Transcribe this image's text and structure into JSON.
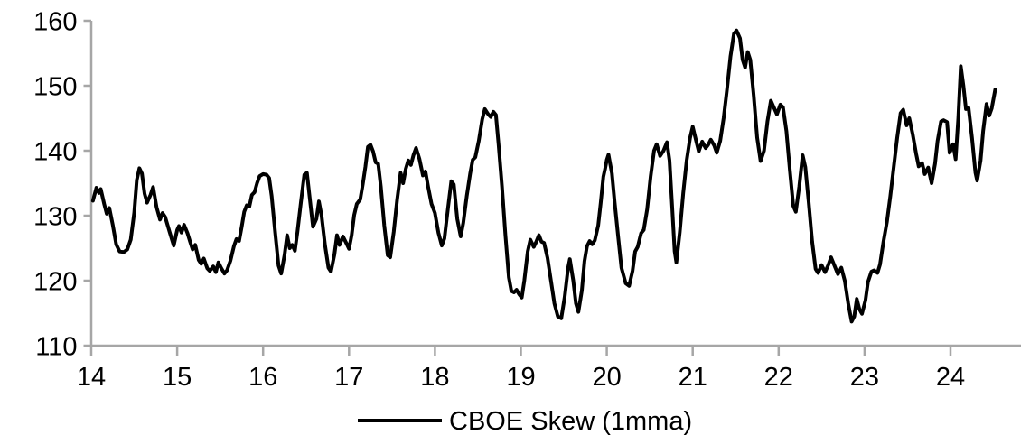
{
  "style": {
    "background": "#ffffff",
    "axis_color": "#a6a6a6",
    "text_color": "#000000",
    "series_color": "#000000"
  },
  "chart_data": {
    "type": "line",
    "title": "",
    "xlabel": "",
    "ylabel": "",
    "legend": "CBOE Skew (1mma)",
    "legend_position": "bottom-center",
    "grid": false,
    "xlim": [
      14,
      24.82
    ],
    "ylim": [
      110,
      160
    ],
    "x_ticks": [
      14,
      15,
      16,
      17,
      18,
      19,
      20,
      21,
      22,
      23,
      24
    ],
    "y_ticks": [
      110,
      120,
      130,
      140,
      150,
      160
    ],
    "series": [
      {
        "name": "CBOE Skew (1mma)",
        "color": "#000000",
        "points": [
          [
            14.02,
            132.3
          ],
          [
            14.06,
            134.3
          ],
          [
            14.09,
            133.5
          ],
          [
            14.11,
            134.1
          ],
          [
            14.15,
            131.8
          ],
          [
            14.18,
            130.3
          ],
          [
            14.21,
            131.2
          ],
          [
            14.25,
            128.6
          ],
          [
            14.29,
            125.6
          ],
          [
            14.33,
            124.5
          ],
          [
            14.38,
            124.4
          ],
          [
            14.42,
            124.8
          ],
          [
            14.46,
            126.3
          ],
          [
            14.5,
            130.5
          ],
          [
            14.53,
            135.5
          ],
          [
            14.56,
            137.3
          ],
          [
            14.59,
            136.5
          ],
          [
            14.62,
            133.4
          ],
          [
            14.65,
            132.0
          ],
          [
            14.69,
            133.2
          ],
          [
            14.72,
            134.4
          ],
          [
            14.76,
            131.3
          ],
          [
            14.8,
            129.4
          ],
          [
            14.83,
            130.4
          ],
          [
            14.86,
            129.8
          ],
          [
            14.91,
            127.6
          ],
          [
            14.96,
            125.4
          ],
          [
            15.0,
            127.8
          ],
          [
            15.02,
            128.4
          ],
          [
            15.05,
            127.4
          ],
          [
            15.08,
            128.6
          ],
          [
            15.12,
            127.3
          ],
          [
            15.15,
            126.0
          ],
          [
            15.18,
            124.8
          ],
          [
            15.21,
            125.5
          ],
          [
            15.25,
            123.2
          ],
          [
            15.28,
            122.6
          ],
          [
            15.31,
            123.4
          ],
          [
            15.35,
            121.9
          ],
          [
            15.38,
            121.5
          ],
          [
            15.42,
            122.2
          ],
          [
            15.45,
            121.3
          ],
          [
            15.48,
            122.8
          ],
          [
            15.51,
            122.0
          ],
          [
            15.55,
            121.1
          ],
          [
            15.58,
            121.6
          ],
          [
            15.62,
            123.1
          ],
          [
            15.66,
            125.3
          ],
          [
            15.69,
            126.4
          ],
          [
            15.72,
            126.1
          ],
          [
            15.75,
            128.2
          ],
          [
            15.78,
            130.6
          ],
          [
            15.81,
            131.6
          ],
          [
            15.84,
            131.4
          ],
          [
            15.87,
            133.2
          ],
          [
            15.9,
            133.6
          ],
          [
            15.93,
            135.0
          ],
          [
            15.96,
            136.1
          ],
          [
            16.0,
            136.4
          ],
          [
            16.04,
            136.3
          ],
          [
            16.07,
            135.8
          ],
          [
            16.1,
            133.0
          ],
          [
            16.14,
            127.5
          ],
          [
            16.18,
            122.3
          ],
          [
            16.21,
            121.1
          ],
          [
            16.25,
            124.0
          ],
          [
            16.28,
            127.0
          ],
          [
            16.31,
            125.0
          ],
          [
            16.34,
            125.5
          ],
          [
            16.37,
            124.6
          ],
          [
            16.4,
            127.5
          ],
          [
            16.44,
            132.0
          ],
          [
            16.48,
            136.3
          ],
          [
            16.51,
            136.6
          ],
          [
            16.54,
            133.0
          ],
          [
            16.58,
            128.3
          ],
          [
            16.62,
            129.5
          ],
          [
            16.65,
            132.2
          ],
          [
            16.68,
            130.0
          ],
          [
            16.72,
            125.5
          ],
          [
            16.76,
            122.0
          ],
          [
            16.79,
            121.4
          ],
          [
            16.83,
            124.0
          ],
          [
            16.86,
            127.0
          ],
          [
            16.89,
            125.5
          ],
          [
            16.93,
            126.8
          ],
          [
            16.96,
            126.0
          ],
          [
            17.0,
            124.9
          ],
          [
            17.03,
            127.0
          ],
          [
            17.06,
            130.1
          ],
          [
            17.09,
            131.8
          ],
          [
            17.13,
            132.5
          ],
          [
            17.16,
            134.8
          ],
          [
            17.19,
            137.5
          ],
          [
            17.22,
            140.6
          ],
          [
            17.25,
            140.9
          ],
          [
            17.28,
            139.9
          ],
          [
            17.31,
            138.2
          ],
          [
            17.34,
            138.0
          ],
          [
            17.37,
            134.5
          ],
          [
            17.41,
            128.5
          ],
          [
            17.45,
            123.9
          ],
          [
            17.48,
            123.6
          ],
          [
            17.52,
            127.5
          ],
          [
            17.56,
            132.5
          ],
          [
            17.6,
            136.6
          ],
          [
            17.63,
            135.0
          ],
          [
            17.66,
            137.2
          ],
          [
            17.69,
            138.5
          ],
          [
            17.72,
            137.8
          ],
          [
            17.75,
            139.3
          ],
          [
            17.78,
            140.4
          ],
          [
            17.82,
            138.7
          ],
          [
            17.86,
            136.2
          ],
          [
            17.89,
            136.8
          ],
          [
            17.92,
            134.5
          ],
          [
            17.96,
            131.8
          ],
          [
            18.0,
            130.4
          ],
          [
            18.04,
            127.4
          ],
          [
            18.08,
            125.4
          ],
          [
            18.11,
            126.5
          ],
          [
            18.15,
            131.0
          ],
          [
            18.19,
            135.3
          ],
          [
            18.22,
            134.8
          ],
          [
            18.26,
            129.5
          ],
          [
            18.3,
            126.8
          ],
          [
            18.33,
            128.9
          ],
          [
            18.37,
            133.0
          ],
          [
            18.41,
            136.5
          ],
          [
            18.44,
            138.6
          ],
          [
            18.47,
            139.0
          ],
          [
            18.51,
            141.5
          ],
          [
            18.55,
            144.8
          ],
          [
            18.58,
            146.4
          ],
          [
            18.62,
            145.6
          ],
          [
            18.65,
            145.2
          ],
          [
            18.68,
            146.0
          ],
          [
            18.71,
            145.5
          ],
          [
            18.74,
            141.0
          ],
          [
            18.78,
            134.5
          ],
          [
            18.82,
            127.0
          ],
          [
            18.86,
            120.5
          ],
          [
            18.89,
            118.4
          ],
          [
            18.92,
            118.2
          ],
          [
            18.95,
            118.6
          ],
          [
            18.98,
            117.9
          ],
          [
            19.01,
            117.4
          ],
          [
            19.04,
            120.0
          ],
          [
            19.08,
            124.5
          ],
          [
            19.11,
            126.3
          ],
          [
            19.15,
            125.2
          ],
          [
            19.18,
            126.0
          ],
          [
            19.21,
            127.0
          ],
          [
            19.24,
            126.0
          ],
          [
            19.27,
            125.8
          ],
          [
            19.31,
            123.5
          ],
          [
            19.35,
            120.0
          ],
          [
            19.39,
            116.5
          ],
          [
            19.43,
            114.5
          ],
          [
            19.47,
            114.2
          ],
          [
            19.51,
            117.5
          ],
          [
            19.55,
            122.0
          ],
          [
            19.57,
            123.3
          ],
          [
            19.61,
            120.0
          ],
          [
            19.64,
            116.5
          ],
          [
            19.67,
            115.2
          ],
          [
            19.71,
            118.5
          ],
          [
            19.74,
            123.0
          ],
          [
            19.77,
            125.3
          ],
          [
            19.8,
            126.1
          ],
          [
            19.83,
            125.6
          ],
          [
            19.86,
            126.2
          ],
          [
            19.9,
            128.5
          ],
          [
            19.93,
            132.0
          ],
          [
            19.96,
            136.0
          ],
          [
            19.98,
            137.2
          ],
          [
            20.0,
            138.6
          ],
          [
            20.02,
            139.4
          ],
          [
            20.06,
            136.5
          ],
          [
            20.09,
            132.2
          ],
          [
            20.13,
            127.0
          ],
          [
            20.17,
            122.0
          ],
          [
            20.22,
            119.6
          ],
          [
            20.26,
            119.2
          ],
          [
            20.3,
            121.5
          ],
          [
            20.33,
            124.5
          ],
          [
            20.36,
            125.2
          ],
          [
            20.4,
            127.3
          ],
          [
            20.43,
            127.8
          ],
          [
            20.47,
            131.0
          ],
          [
            20.51,
            136.0
          ],
          [
            20.55,
            140.0
          ],
          [
            20.58,
            141.0
          ],
          [
            20.62,
            139.2
          ],
          [
            20.66,
            140.0
          ],
          [
            20.7,
            141.3
          ],
          [
            20.73,
            138.5
          ],
          [
            20.76,
            131.5
          ],
          [
            20.79,
            124.5
          ],
          [
            20.81,
            122.8
          ],
          [
            20.85,
            127.5
          ],
          [
            20.89,
            133.5
          ],
          [
            20.93,
            138.5
          ],
          [
            20.97,
            142.0
          ],
          [
            21.0,
            143.7
          ],
          [
            21.04,
            141.5
          ],
          [
            21.07,
            139.9
          ],
          [
            21.11,
            141.4
          ],
          [
            21.15,
            140.4
          ],
          [
            21.18,
            140.9
          ],
          [
            21.21,
            141.7
          ],
          [
            21.25,
            140.8
          ],
          [
            21.28,
            139.7
          ],
          [
            21.32,
            141.5
          ],
          [
            21.36,
            145.0
          ],
          [
            21.4,
            149.5
          ],
          [
            21.44,
            154.5
          ],
          [
            21.48,
            158.0
          ],
          [
            21.51,
            158.5
          ],
          [
            21.55,
            157.3
          ],
          [
            21.58,
            154.0
          ],
          [
            21.61,
            152.8
          ],
          [
            21.64,
            155.2
          ],
          [
            21.67,
            154.0
          ],
          [
            21.71,
            148.5
          ],
          [
            21.75,
            142.0
          ],
          [
            21.79,
            138.4
          ],
          [
            21.83,
            140.0
          ],
          [
            21.87,
            144.5
          ],
          [
            21.91,
            147.7
          ],
          [
            21.95,
            146.5
          ],
          [
            21.98,
            145.6
          ],
          [
            22.02,
            147.1
          ],
          [
            22.05,
            146.7
          ],
          [
            22.09,
            143.0
          ],
          [
            22.13,
            137.0
          ],
          [
            22.17,
            131.5
          ],
          [
            22.2,
            130.6
          ],
          [
            22.24,
            134.5
          ],
          [
            22.28,
            139.3
          ],
          [
            22.31,
            137.5
          ],
          [
            22.35,
            132.0
          ],
          [
            22.39,
            126.0
          ],
          [
            22.43,
            121.8
          ],
          [
            22.46,
            121.2
          ],
          [
            22.5,
            122.4
          ],
          [
            22.54,
            121.3
          ],
          [
            22.58,
            122.5
          ],
          [
            22.61,
            123.6
          ],
          [
            22.65,
            122.3
          ],
          [
            22.69,
            121.0
          ],
          [
            22.73,
            122.0
          ],
          [
            22.77,
            120.0
          ],
          [
            22.81,
            116.5
          ],
          [
            22.85,
            113.7
          ],
          [
            22.88,
            114.5
          ],
          [
            22.91,
            117.2
          ],
          [
            22.94,
            115.6
          ],
          [
            22.97,
            114.9
          ],
          [
            23.01,
            117.0
          ],
          [
            23.04,
            119.8
          ],
          [
            23.08,
            121.4
          ],
          [
            23.11,
            121.6
          ],
          [
            23.15,
            121.2
          ],
          [
            23.18,
            122.5
          ],
          [
            23.22,
            126.0
          ],
          [
            23.26,
            129.0
          ],
          [
            23.3,
            133.0
          ],
          [
            23.34,
            137.5
          ],
          [
            23.38,
            142.0
          ],
          [
            23.42,
            145.8
          ],
          [
            23.45,
            146.3
          ],
          [
            23.49,
            143.9
          ],
          [
            23.52,
            145.0
          ],
          [
            23.56,
            142.5
          ],
          [
            23.6,
            139.5
          ],
          [
            23.63,
            137.6
          ],
          [
            23.67,
            138.1
          ],
          [
            23.7,
            136.4
          ],
          [
            23.74,
            137.4
          ],
          [
            23.78,
            135.0
          ],
          [
            23.82,
            138.0
          ],
          [
            23.85,
            141.5
          ],
          [
            23.89,
            144.5
          ],
          [
            23.92,
            144.7
          ],
          [
            23.96,
            144.4
          ],
          [
            23.99,
            139.7
          ],
          [
            24.03,
            141.0
          ],
          [
            24.06,
            138.7
          ],
          [
            24.09,
            145.0
          ],
          [
            24.12,
            153.0
          ],
          [
            24.15,
            150.0
          ],
          [
            24.18,
            146.4
          ],
          [
            24.21,
            146.6
          ],
          [
            24.25,
            142.0
          ],
          [
            24.29,
            136.6
          ],
          [
            24.31,
            135.4
          ],
          [
            24.35,
            138.5
          ],
          [
            24.38,
            143.0
          ],
          [
            24.42,
            147.2
          ],
          [
            24.45,
            145.4
          ],
          [
            24.48,
            146.5
          ],
          [
            24.52,
            149.4
          ]
        ]
      }
    ]
  }
}
